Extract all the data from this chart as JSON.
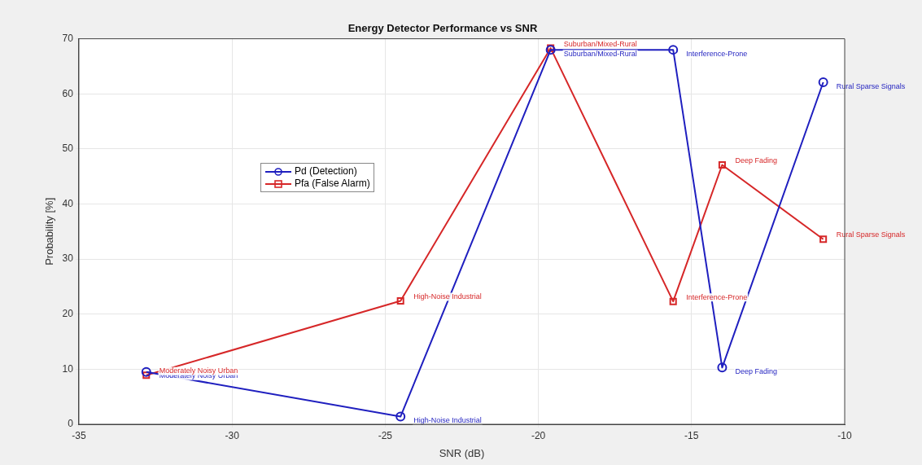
{
  "chart_data": {
    "type": "line",
    "title": "Energy Detector Performance vs SNR",
    "xlabel": "SNR (dB)",
    "ylabel": "Probability [%]",
    "x": [
      -32.8,
      -24.5,
      -19.6,
      -15.6,
      -14.0,
      -10.7
    ],
    "series": [
      {
        "name": "Pd (Detection)",
        "color": "#1f1fbf",
        "marker": "circle",
        "values": [
          9.5,
          1.4,
          68.0,
          68.0,
          10.3,
          62.1
        ],
        "value_labels": [
          "Moderately Noisy Urban",
          "High-Noise Industrial",
          "Suburban/Mixed-Rural",
          "Interference-Prone",
          "Deep Fading",
          "Rural Sparse Signals"
        ]
      },
      {
        "name": "Pfa (False Alarm)",
        "color": "#d62728",
        "marker": "square",
        "values": [
          8.9,
          22.4,
          68.3,
          22.3,
          47.1,
          33.6
        ],
        "value_labels": [
          "Moderately Noisy Urban",
          "High-Noise Industrial",
          "Suburban/Mixed-Rural",
          "Interference-Prone",
          "Deep Fading",
          "Rural Sparse Signals"
        ]
      }
    ],
    "xlim": [
      -35,
      -10
    ],
    "xticks": [
      -35,
      -30,
      -25,
      -20,
      -15,
      -10
    ],
    "ylim": [
      0,
      70
    ],
    "yticks": [
      0,
      10,
      20,
      30,
      40,
      50,
      60,
      70
    ],
    "grid": true,
    "legend": "left",
    "line_style": "solid"
  }
}
